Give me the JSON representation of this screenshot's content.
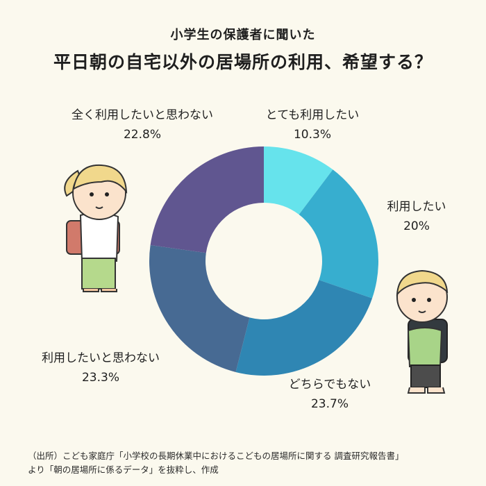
{
  "header": {
    "subtitle": "小学生の保護者に聞いた",
    "title": "平日朝の自宅以外の居場所の利用、希望する？"
  },
  "chart_data": {
    "type": "pie",
    "categories": [
      "とても利用したい",
      "利用したい",
      "どちらでもない",
      "利用したいと思わない",
      "全く利用したいと思わない"
    ],
    "values": [
      10.3,
      20,
      23.7,
      23.3,
      22.8
    ],
    "value_labels": [
      "10.3%",
      "20%",
      "23.7%",
      "23.3%",
      "22.8%"
    ],
    "colors": [
      "#66e3ec",
      "#37aecf",
      "#2f86b3",
      "#476a93",
      "#605690"
    ],
    "donut": true
  },
  "footnote": {
    "line1": "（出所）こども家庭庁「小学校の長期休業中におけるこどもの居場所に関する 調査研究報告書」",
    "line2": "より「朝の居場所に係るデータ」を抜粋し、作成"
  },
  "illustrations": {
    "left": "girl-with-backpack-icon",
    "right": "boy-with-backpack-icon"
  }
}
